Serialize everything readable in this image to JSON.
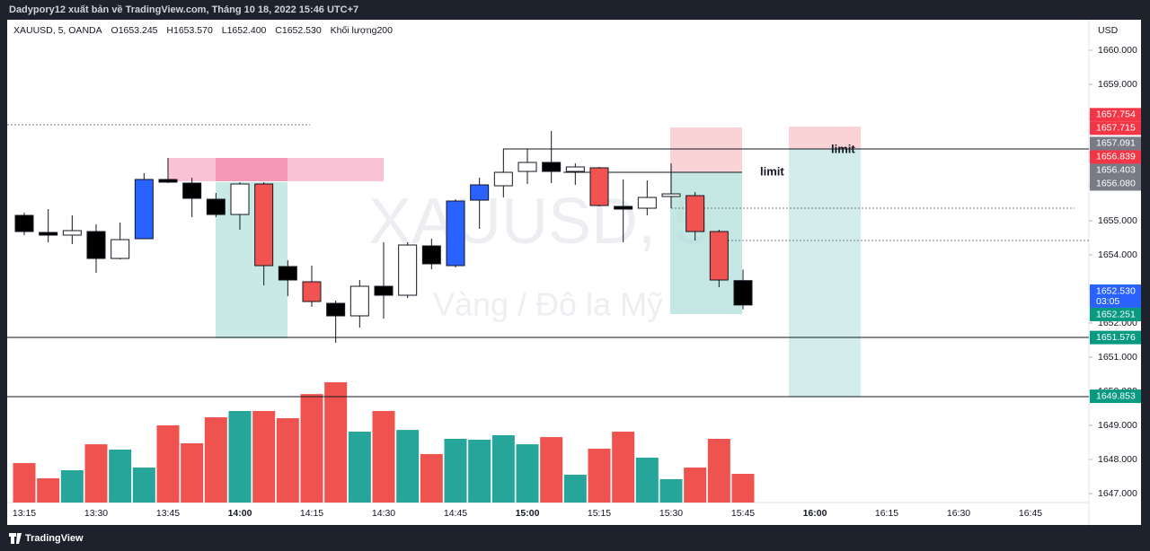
{
  "header": {
    "text": "Dadypory12 xuất bản về TradingView.com, Tháng 10 18, 2022 15:46 UTC+7"
  },
  "footer": {
    "brand": "TradingView"
  },
  "chart_data": {
    "type": "candlestick",
    "symbol": "XAUUSD, 5, OANDA",
    "legend": {
      "open": "O1653.245",
      "high": "H1653.570",
      "low": "L1652.400",
      "close": "C1652.530",
      "volume": "Khối lượng"
    },
    "watermark": [
      "XAUUSD, 5",
      "Vàng / Đô la Mỹ"
    ],
    "currency": "USD",
    "annotations": [
      "limit",
      "limit"
    ],
    "categories": [
      "13:15",
      null,
      null,
      "13:30",
      null,
      null,
      "13:45",
      null,
      null,
      "14:00",
      null,
      null,
      "14:15",
      null,
      null,
      "14:30",
      null,
      null,
      "14:45",
      null,
      null,
      "15:00",
      null,
      null,
      "15:15",
      null,
      null,
      "15:30",
      null,
      null,
      "15:45",
      null,
      null,
      "16:00",
      null,
      null,
      "16:15",
      null,
      null,
      "16:30",
      null,
      null,
      "16:45"
    ],
    "open": [
      1655.158,
      1654.658,
      1654.579,
      1654.684,
      1653.895,
      1654.474,
      1656.211,
      1656.105,
      1655.632,
      1655.184,
      1656.079,
      1653.658,
      1653.211,
      1652.579,
      1652.211,
      1653.079,
      1652.816,
      1654.263,
      1653.684,
      1655.605,
      1656.026,
      1656.447,
      1656.711,
      1656.447,
      1656.553,
      1655.421,
      1655.368,
      1655.711,
      1655.737,
      1654.684,
      1653.245,
      null,
      null,
      null,
      null,
      null,
      null,
      null,
      null,
      null,
      null,
      null,
      null
    ],
    "high": [
      1655.237,
      1655.342,
      1655.158,
      1654.895,
      1654.947,
      1656.395,
      1656.842,
      1656.263,
      1655.816,
      1656.132,
      1656.132,
      1653.842,
      1653.684,
      1652.658,
      1653.263,
      1654.368,
      1654.368,
      1654.474,
      1655.632,
      1656.263,
      1657.105,
      1657.105,
      1657.632,
      1656.684,
      1656.579,
      1656.211,
      1656.184,
      1656.684,
      1655.842,
      1654.737,
      1653.57,
      null,
      null,
      null,
      null,
      null,
      null,
      null,
      null,
      null,
      null,
      null,
      null
    ],
    "low": [
      1654.579,
      1654.368,
      1654.316,
      1653.474,
      1653.868,
      1654.474,
      1656.105,
      1655.105,
      1655.105,
      1654.737,
      1653.105,
      1652.789,
      1652.474,
      1651.421,
      1651.868,
      1652.132,
      1652.737,
      1653.579,
      1653.632,
      1654.763,
      1655.684,
      1656.079,
      1656.105,
      1656.053,
      1655.421,
      1654.368,
      1655.158,
      1655.368,
      1654.421,
      1653.053,
      1652.4,
      null,
      null,
      null,
      null,
      null,
      null,
      null,
      null,
      null,
      null,
      null,
      null
    ],
    "close": [
      1654.684,
      1654.579,
      1654.711,
      1653.895,
      1654.447,
      1656.211,
      1656.132,
      1655.658,
      1655.184,
      1656.079,
      1653.684,
      1653.263,
      1652.632,
      1652.211,
      1653.079,
      1652.816,
      1654.289,
      1653.737,
      1655.579,
      1656.053,
      1656.421,
      1656.711,
      1656.447,
      1656.579,
      1655.447,
      1655.342,
      1655.684,
      1655.789,
      1654.684,
      1653.263,
      1652.53,
      null,
      null,
      null,
      null,
      null,
      null,
      null,
      null,
      null,
      null,
      null,
      null
    ],
    "colors": [
      "#000000",
      "#000000",
      "#ffffff",
      "#000000",
      "#ffffff",
      "#2962ff",
      "#000000",
      "#000000",
      "#000000",
      "#ffffff",
      "#f05350",
      "#000000",
      "#f05350",
      "#000000",
      "#ffffff",
      "#000000",
      "#ffffff",
      "#000000",
      "#2962ff",
      "#2962ff",
      "#ffffff",
      "#ffffff",
      "#000000",
      "#ffffff",
      "#f05350",
      "#000000",
      "#ffffff",
      "#ffffff",
      "#f05350",
      "#f05350",
      "#000000",
      null,
      null,
      null,
      null,
      null,
      null,
      null,
      null,
      null,
      null,
      null,
      null
    ],
    "volume": {
      "values": [
        275,
        169,
        225,
        406,
        369,
        244,
        538,
        413,
        594,
        638,
        638,
        588,
        756,
        838,
        494,
        638,
        506,
        338,
        444,
        438,
        469,
        406,
        456,
        194,
        375,
        494,
        313,
        163,
        244,
        444,
        200,
        null,
        null,
        null,
        null,
        null,
        null,
        null,
        null,
        null,
        null,
        null,
        null
      ],
      "up_color": "#26a69a",
      "down_color": "#ef5350"
    },
    "ylim": [
      1646.737,
      1660.895
    ],
    "yticks": [
      {
        "value": 1647,
        "label": "1647.000"
      },
      {
        "value": 1648,
        "label": "1648.000"
      },
      {
        "value": 1649,
        "label": "1649.000"
      },
      {
        "value": 1650,
        "label": "1650.000"
      },
      {
        "value": 1651,
        "label": "1651.000"
      },
      {
        "value": 1652,
        "label": "1652.000"
      },
      {
        "value": 1653,
        "label": "1653.000"
      },
      {
        "value": 1654,
        "label": "1654.000"
      },
      {
        "value": 1655,
        "label": "1655.000"
      },
      {
        "value": 1656,
        "label": "1656.000"
      },
      {
        "value": 1657,
        "label": "1657.000"
      },
      {
        "value": 1658,
        "label": "1658.000"
      },
      {
        "value": 1659,
        "label": "1659.000"
      },
      {
        "value": 1660,
        "label": "1660.000"
      }
    ],
    "badges": [
      {
        "value": 1657.754,
        "label": "1657.754",
        "color": "#f23645"
      },
      {
        "value": 1657.715,
        "label": "1657.715",
        "color": "#f23645"
      },
      {
        "value": 1657.091,
        "label": "1657.091",
        "color": "#787b86"
      },
      {
        "value": 1656.839,
        "label": "1656.839",
        "color": "#f23645"
      },
      {
        "value": 1656.403,
        "label": "1656.403",
        "color": "#787b86"
      },
      {
        "value": 1656.08,
        "label": "1656.080",
        "color": "#787b86"
      },
      {
        "value": 1652.53,
        "label": "1652.530",
        "color": "#2962ff",
        "timer": "03:05"
      },
      {
        "value": 1652.251,
        "label": "1652.251",
        "color": "#089981"
      },
      {
        "value": 1651.576,
        "label": "1651.576",
        "color": "#089981"
      },
      {
        "value": 1649.853,
        "label": "1649.853",
        "color": "#089981"
      }
    ]
  }
}
